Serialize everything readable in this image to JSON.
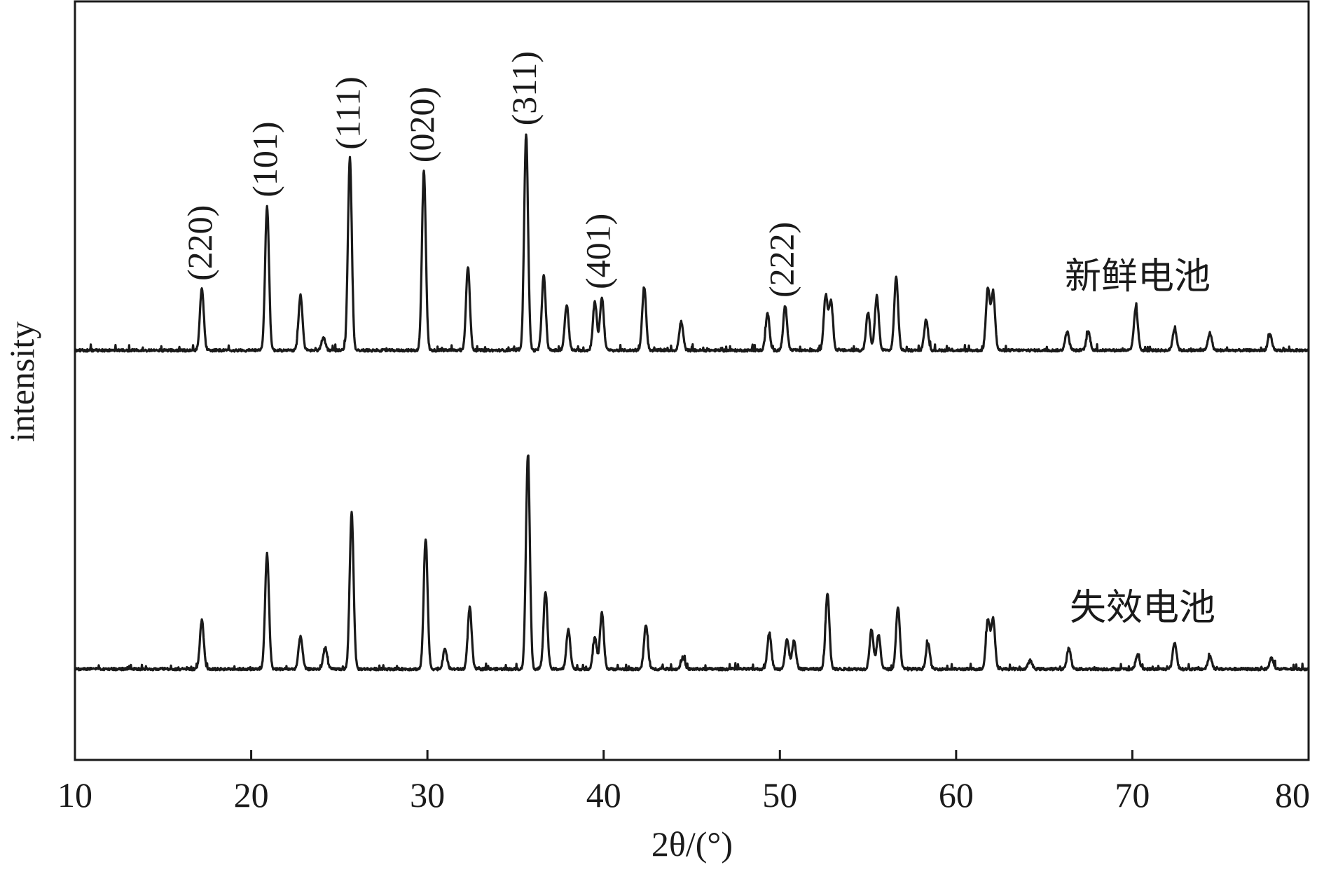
{
  "chart_data": {
    "type": "line",
    "xlabel": "2θ/(°)",
    "ylabel": "intensity",
    "xlim": [
      10,
      80
    ],
    "x_ticks": [
      "10",
      "20",
      "30",
      "40",
      "50",
      "60",
      "70",
      "80"
    ],
    "y_ticks": [],
    "grid": false,
    "legend": "none",
    "line_color": "#1a1a1a",
    "annotations": [
      {
        "text": "(220)",
        "x": 17.2
      },
      {
        "text": "(101)",
        "x": 20.9
      },
      {
        "text": "(111)",
        "x": 25.6
      },
      {
        "text": "(020)",
        "x": 29.8
      },
      {
        "text": "(311)",
        "x": 35.6
      },
      {
        "text": "(401)",
        "x": 39.8
      },
      {
        "text": "(222)",
        "x": 50.2
      }
    ],
    "series": [
      {
        "name": "新鲜电池",
        "baseline": 0.6,
        "noise": 0.22,
        "peaks": [
          {
            "x": 17.2,
            "y": 10.9
          },
          {
            "x": 20.9,
            "y": 25.8
          },
          {
            "x": 22.8,
            "y": 9.8
          },
          {
            "x": 24.1,
            "y": 2.3
          },
          {
            "x": 25.6,
            "y": 34.3
          },
          {
            "x": 29.8,
            "y": 32.0
          },
          {
            "x": 32.3,
            "y": 14.8
          },
          {
            "x": 35.6,
            "y": 38.6
          },
          {
            "x": 36.6,
            "y": 13.3
          },
          {
            "x": 37.9,
            "y": 8.0
          },
          {
            "x": 39.5,
            "y": 8.6
          },
          {
            "x": 39.9,
            "y": 9.4
          },
          {
            "x": 42.3,
            "y": 11.3
          },
          {
            "x": 44.4,
            "y": 5.1
          },
          {
            "x": 49.3,
            "y": 6.6
          },
          {
            "x": 50.3,
            "y": 7.9
          },
          {
            "x": 52.6,
            "y": 9.8
          },
          {
            "x": 52.9,
            "y": 8.8
          },
          {
            "x": 55.0,
            "y": 6.7
          },
          {
            "x": 55.5,
            "y": 9.7
          },
          {
            "x": 56.6,
            "y": 13.0
          },
          {
            "x": 58.3,
            "y": 5.5
          },
          {
            "x": 61.8,
            "y": 11.0
          },
          {
            "x": 62.1,
            "y": 10.3
          },
          {
            "x": 66.3,
            "y": 3.3
          },
          {
            "x": 67.5,
            "y": 3.3
          },
          {
            "x": 70.2,
            "y": 7.7
          },
          {
            "x": 72.4,
            "y": 3.9
          },
          {
            "x": 74.4,
            "y": 3.1
          },
          {
            "x": 77.8,
            "y": 2.8
          }
        ]
      },
      {
        "name": "失效电池",
        "baseline": 0.6,
        "noise": 0.22,
        "peaks": [
          {
            "x": 17.2,
            "y": 8.7
          },
          {
            "x": 20.9,
            "y": 20.6
          },
          {
            "x": 22.8,
            "y": 5.9
          },
          {
            "x": 24.2,
            "y": 3.9
          },
          {
            "x": 25.7,
            "y": 27.9
          },
          {
            "x": 29.9,
            "y": 23.3
          },
          {
            "x": 31.0,
            "y": 3.6
          },
          {
            "x": 32.4,
            "y": 11.0
          },
          {
            "x": 35.7,
            "y": 38.2
          },
          {
            "x": 36.7,
            "y": 13.9
          },
          {
            "x": 38.0,
            "y": 7.0
          },
          {
            "x": 39.5,
            "y": 5.6
          },
          {
            "x": 39.9,
            "y": 10.0
          },
          {
            "x": 42.4,
            "y": 7.8
          },
          {
            "x": 44.5,
            "y": 2.1
          },
          {
            "x": 49.4,
            "y": 6.5
          },
          {
            "x": 50.4,
            "y": 5.3
          },
          {
            "x": 50.8,
            "y": 5.0
          },
          {
            "x": 52.7,
            "y": 13.6
          },
          {
            "x": 55.2,
            "y": 7.0
          },
          {
            "x": 55.6,
            "y": 6.0
          },
          {
            "x": 56.7,
            "y": 10.9
          },
          {
            "x": 58.4,
            "y": 4.6
          },
          {
            "x": 61.8,
            "y": 8.8
          },
          {
            "x": 62.1,
            "y": 8.9
          },
          {
            "x": 64.2,
            "y": 1.5
          },
          {
            "x": 66.4,
            "y": 3.7
          },
          {
            "x": 70.3,
            "y": 2.5
          },
          {
            "x": 72.4,
            "y": 4.7
          },
          {
            "x": 74.4,
            "y": 2.3
          },
          {
            "x": 77.9,
            "y": 2.0
          }
        ]
      }
    ]
  }
}
